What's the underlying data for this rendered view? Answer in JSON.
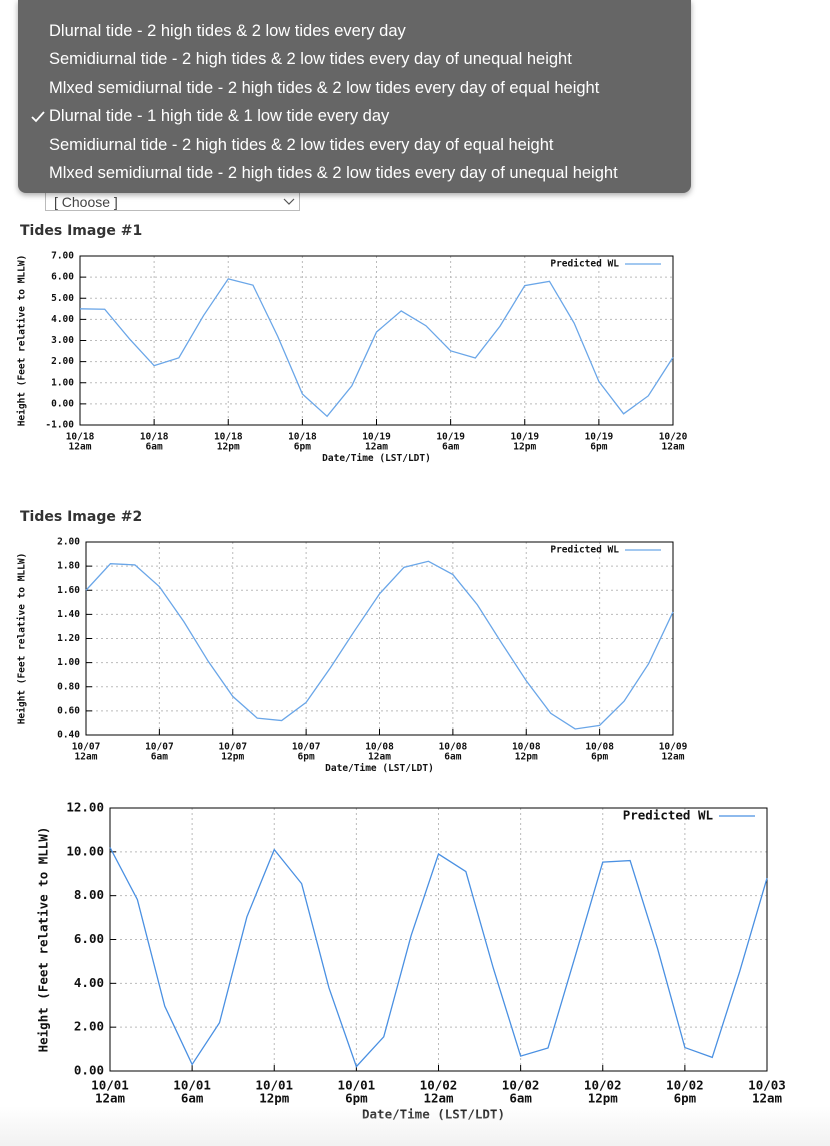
{
  "select_label": "[ Choose ]",
  "dropdown": {
    "options": [
      "Dlurnal tide - 2 high tides & 2 low tides every day",
      "Semidiurnal tide - 2 high tides & 2 low tides every day of unequal height",
      "Mlxed semidiurnal tide - 2 high tides & 2 low tides every day of equal height",
      "Dlurnal tide - 1 high tide & 1 low tide every day",
      "Semidiurnal tide - 2 high tides & 2 low tides every day of equal height",
      "Mlxed semidiurnal tide - 2 high tides & 2 low tides every day of unequal height"
    ],
    "selected": 3
  },
  "chart_data": [
    {
      "type": "line",
      "title": "Tides Image #1",
      "xlabel": "Date/Time (LST/LDT)",
      "ylabel": "Height (Feet relative to MLLW)",
      "grid": true,
      "legend": "top-right",
      "xlim": [
        0,
        48
      ],
      "xticks": [
        {
          "value": 0,
          "label": "10/18 12am"
        },
        {
          "value": 6,
          "label": "10/18 6am"
        },
        {
          "value": 12,
          "label": "10/18 12pm"
        },
        {
          "value": 18,
          "label": "10/18 6pm"
        },
        {
          "value": 24,
          "label": "10/19 12am"
        },
        {
          "value": 30,
          "label": "10/19 6am"
        },
        {
          "value": 36,
          "label": "10/19 12pm"
        },
        {
          "value": 42,
          "label": "10/19 6pm"
        },
        {
          "value": 48,
          "label": "10/20 12am"
        }
      ],
      "ylim": [
        -1,
        7
      ],
      "yticks": [
        {
          "value": -1,
          "label": "-1.00"
        },
        {
          "value": 0,
          "label": "0.00"
        },
        {
          "value": 1,
          "label": "1.00"
        },
        {
          "value": 2,
          "label": "2.00"
        },
        {
          "value": 3,
          "label": "3.00"
        },
        {
          "value": 4,
          "label": "4.00"
        },
        {
          "value": 5,
          "label": "5.00"
        },
        {
          "value": 6,
          "label": "6.00"
        },
        {
          "value": 7,
          "label": "7.00"
        }
      ],
      "x": [
        0,
        2,
        4,
        6,
        8,
        10,
        12,
        14,
        16,
        18,
        20,
        22,
        24,
        26,
        28,
        30,
        32,
        34,
        36,
        38,
        40,
        42,
        44,
        46,
        48
      ],
      "series": [
        {
          "name": "Predicted WL",
          "color": "#6aa6e8",
          "values": [
            4.5,
            4.48,
            3.08,
            1.81,
            2.18,
            4.18,
            5.92,
            5.62,
            3.2,
            0.47,
            -0.59,
            0.85,
            3.4,
            4.4,
            3.7,
            2.51,
            2.17,
            3.68,
            5.6,
            5.8,
            3.82,
            1.06,
            -0.47,
            0.38,
            2.2
          ]
        }
      ]
    },
    {
      "type": "line",
      "title": "Tides Image #2",
      "xlabel": "Date/Time (LST/LDT)",
      "ylabel": "Height (Feet relative to MLLW)",
      "grid": true,
      "legend": "top-right",
      "xlim": [
        0,
        48
      ],
      "xticks": [
        {
          "value": 0,
          "label": "10/07 12am"
        },
        {
          "value": 6,
          "label": "10/07 6am"
        },
        {
          "value": 12,
          "label": "10/07 12pm"
        },
        {
          "value": 18,
          "label": "10/07 6pm"
        },
        {
          "value": 24,
          "label": "10/08 12am"
        },
        {
          "value": 30,
          "label": "10/08 6am"
        },
        {
          "value": 36,
          "label": "10/08 12pm"
        },
        {
          "value": 42,
          "label": "10/08 6pm"
        },
        {
          "value": 48,
          "label": "10/09 12am"
        }
      ],
      "ylim": [
        0.4,
        2.0
      ],
      "yticks": [
        {
          "value": 0.4,
          "label": "0.40"
        },
        {
          "value": 0.6,
          "label": "0.60"
        },
        {
          "value": 0.8,
          "label": "0.80"
        },
        {
          "value": 1.0,
          "label": "1.00"
        },
        {
          "value": 1.2,
          "label": "1.20"
        },
        {
          "value": 1.4,
          "label": "1.40"
        },
        {
          "value": 1.6,
          "label": "1.60"
        },
        {
          "value": 1.8,
          "label": "1.80"
        },
        {
          "value": 2.0,
          "label": "2.00"
        }
      ],
      "x": [
        0,
        2,
        4,
        6,
        8,
        10,
        12,
        14,
        16,
        18,
        20,
        22,
        24,
        26,
        28,
        30,
        32,
        34,
        36,
        38,
        40,
        42,
        44,
        46,
        48
      ],
      "series": [
        {
          "name": "Predicted WL",
          "color": "#6aa6e8",
          "values": [
            1.6,
            1.82,
            1.81,
            1.63,
            1.34,
            1.01,
            0.72,
            0.54,
            0.52,
            0.67,
            0.96,
            1.27,
            1.57,
            1.79,
            1.84,
            1.73,
            1.48,
            1.16,
            0.85,
            0.58,
            0.45,
            0.48,
            0.68,
            0.99,
            1.42
          ]
        }
      ]
    },
    {
      "type": "line",
      "xlabel": "Date/Time (LST/LDT)",
      "ylabel": "Height (Feet relative to MLLW)",
      "grid": true,
      "legend": "top-right",
      "xlim": [
        0,
        48
      ],
      "xticks": [
        {
          "value": 0,
          "label": "10/01 12am"
        },
        {
          "value": 6,
          "label": "10/01 6am"
        },
        {
          "value": 12,
          "label": "10/01 12pm"
        },
        {
          "value": 18,
          "label": "10/01 6pm"
        },
        {
          "value": 24,
          "label": "10/02 12am"
        },
        {
          "value": 30,
          "label": "10/02 6am"
        },
        {
          "value": 36,
          "label": "10/02 12pm"
        },
        {
          "value": 42,
          "label": "10/02 6pm"
        },
        {
          "value": 48,
          "label": "10/03 12am"
        }
      ],
      "ylim": [
        0,
        12
      ],
      "yticks": [
        {
          "value": 0,
          "label": "0.00"
        },
        {
          "value": 2,
          "label": "2.00"
        },
        {
          "value": 4,
          "label": "4.00"
        },
        {
          "value": 6,
          "label": "6.00"
        },
        {
          "value": 8,
          "label": "8.00"
        },
        {
          "value": 10,
          "label": "10.00"
        },
        {
          "value": 12,
          "label": "12.00"
        }
      ],
      "x": [
        0,
        2,
        4,
        6,
        8,
        10,
        12,
        14,
        16,
        18,
        20,
        22,
        24,
        26,
        28,
        30,
        32,
        34,
        36,
        38,
        40,
        42,
        44,
        46,
        48
      ],
      "series": [
        {
          "name": "Predicted WL",
          "color": "#4a90e2",
          "values": [
            10.2,
            7.82,
            2.96,
            0.3,
            2.2,
            7.03,
            10.1,
            8.55,
            3.79,
            0.2,
            1.56,
            6.18,
            9.9,
            9.1,
            4.7,
            0.68,
            1.05,
            5.26,
            9.53,
            9.6,
            5.6,
            1.07,
            0.62,
            4.53,
            8.8
          ]
        }
      ]
    }
  ]
}
